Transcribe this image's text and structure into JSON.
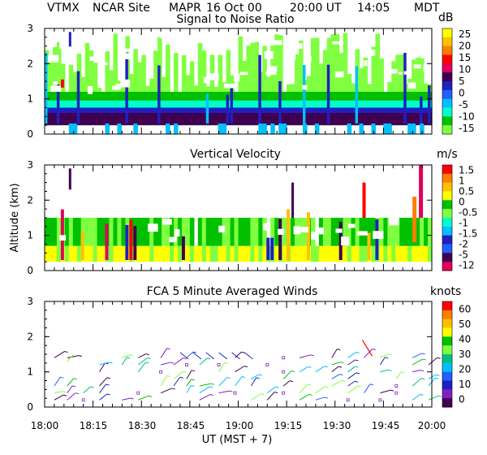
{
  "header": {
    "station": "VTMX",
    "site": "NCAR Site",
    "instrument": "MAPR",
    "date": "16 Oct 00",
    "time_ut": "20:00 UT",
    "time_local": "14:05",
    "timezone": "MDT"
  },
  "x_axis": {
    "ticks": [
      "18:00",
      "18:15",
      "18:30",
      "18:45",
      "19:00",
      "19:15",
      "19:30",
      "19:45",
      "20:00"
    ],
    "label": "UT  (MST + 7)",
    "range_minutes": [
      0,
      120
    ]
  },
  "y_axis_label": "Altitude (km)",
  "chart_data": [
    {
      "type": "heatmap",
      "title": "Signal to Noise Ratio",
      "units": "dB",
      "x_range_minutes": [
        0,
        120
      ],
      "ylim": [
        0,
        3
      ],
      "y_ticks": [
        "0",
        "1",
        "2",
        "3"
      ],
      "colorbar": {
        "labels": [
          "25",
          "20",
          "15",
          "10",
          "5",
          "0",
          "-5",
          "-10",
          "-15"
        ],
        "colors": [
          "#ffff00",
          "#ffc000",
          "#ff7f00",
          "#ff0000",
          "#e0005a",
          "#400050",
          "#2020c0",
          "#2060ff",
          "#00c0ff",
          "#00ffcc",
          "#00c000",
          "#80ff40"
        ]
      },
      "layers": [
        {
          "from": 0.25,
          "to": 0.6,
          "level": "5"
        },
        {
          "from": 0.6,
          "to": 0.75,
          "level": "0"
        },
        {
          "from": 0.75,
          "to": 0.95,
          "level": "-5"
        },
        {
          "from": 0.95,
          "to": 1.2,
          "level": "-10"
        },
        {
          "from": 1.2,
          "to": 2.9,
          "level": "-15"
        }
      ]
    },
    {
      "type": "heatmap",
      "title": "Vertical Velocity",
      "units": "m/s",
      "x_range_minutes": [
        0,
        120
      ],
      "ylim": [
        0,
        3
      ],
      "y_ticks": [
        "0",
        "1",
        "2",
        "3"
      ],
      "colorbar": {
        "labels": [
          "1.5",
          "1",
          "0.5",
          "0",
          "-0.5",
          "-1",
          "-1.5",
          "-2",
          "-5",
          "-12"
        ],
        "colors": [
          "#ff0000",
          "#ff7f00",
          "#ffc000",
          "#ffff00",
          "#00c000",
          "#80ff40",
          "#00ffcc",
          "#00c0ff",
          "#2020c0",
          "#2060ff",
          "#400050",
          "#e0005a"
        ]
      },
      "layers": [
        {
          "from": 0.25,
          "to": 0.7,
          "level": "0"
        },
        {
          "from": 0.7,
          "to": 1.5,
          "level": "-0.5"
        }
      ]
    },
    {
      "type": "wind_barbs",
      "title": "FCA 5 Minute Averaged Winds",
      "units": "knots",
      "x_range_minutes": [
        0,
        120
      ],
      "ylim": [
        0,
        3
      ],
      "y_ticks": [
        "0",
        "1",
        "2",
        "3"
      ],
      "colorbar": {
        "labels": [
          "60",
          "50",
          "40",
          "30",
          "20",
          "10",
          "0"
        ],
        "colors": [
          "#ff0000",
          "#ff7f00",
          "#ffc000",
          "#ffff00",
          "#00c000",
          "#80ff40",
          "#00c080",
          "#00c0ff",
          "#2060ff",
          "#2020c0",
          "#8020c0",
          "#400050"
        ]
      },
      "times_minutes": [
        3,
        7,
        12,
        17,
        24,
        29,
        36,
        40,
        44,
        48,
        54,
        59,
        64,
        69,
        74,
        79,
        84,
        89,
        94,
        99,
        104,
        109,
        114,
        119
      ],
      "altitudes_km": [
        0.2,
        0.4,
        0.6,
        0.8,
        1.0,
        1.2,
        1.4
      ]
    }
  ]
}
